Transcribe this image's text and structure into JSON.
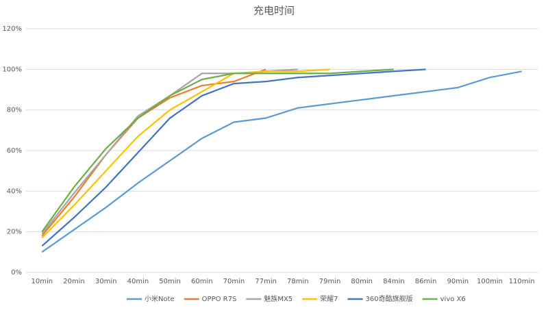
{
  "chart_data": {
    "type": "line",
    "title": "充电时间",
    "categories": [
      "10min",
      "20min",
      "30min",
      "40min",
      "50min",
      "60min",
      "70min",
      "77min",
      "78min",
      "79min",
      "80min",
      "84min",
      "86min",
      "90min",
      "100min",
      "110min"
    ],
    "ylim": [
      0,
      120
    ],
    "yticks": [
      {
        "value": 0,
        "label": "0%"
      },
      {
        "value": 20,
        "label": "20%"
      },
      {
        "value": 40,
        "label": "40%"
      },
      {
        "value": 60,
        "label": "60%"
      },
      {
        "value": 80,
        "label": "80%"
      },
      {
        "value": 100,
        "label": "100%"
      },
      {
        "value": 120,
        "label": "120%"
      }
    ],
    "grid": true,
    "legend": "bottom",
    "series": [
      {
        "name": "小米Note",
        "color": "#5b9bd5",
        "values": [
          10,
          21,
          32,
          44,
          55,
          66,
          74,
          76,
          81,
          83,
          85,
          87,
          89,
          91,
          96,
          99
        ]
      },
      {
        "name": "OPPO R7S",
        "color": "#ed7d31",
        "values": [
          18,
          37,
          58,
          76,
          86,
          92,
          94,
          100,
          null,
          null,
          null,
          null,
          null,
          null,
          null,
          null
        ]
      },
      {
        "name": "魅族MX5",
        "color": "#a5a5a5",
        "values": [
          19,
          39,
          58,
          77,
          87,
          98,
          98,
          99,
          100,
          null,
          null,
          null,
          null,
          null,
          null,
          null
        ]
      },
      {
        "name": "荣耀7",
        "color": "#ffc000",
        "values": [
          17,
          33,
          50,
          67,
          80,
          89,
          98,
          99,
          99,
          100,
          null,
          null,
          null,
          null,
          null,
          null
        ]
      },
      {
        "name": "360奇酷旗舰版",
        "color": "#4472c4",
        "values": [
          13,
          27,
          42,
          59,
          76,
          87,
          93,
          94,
          96,
          97,
          98,
          99,
          100,
          null,
          null,
          null
        ]
      },
      {
        "name": "vivo X6",
        "color": "#70ad47",
        "values": [
          20,
          42,
          61,
          76,
          87,
          95,
          98,
          98,
          98,
          98,
          99,
          100,
          null,
          null,
          null,
          null
        ]
      }
    ]
  }
}
